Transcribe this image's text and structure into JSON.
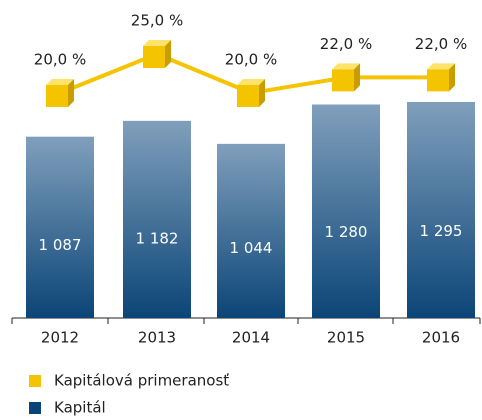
{
  "chart_data": {
    "type": "bar+line",
    "categories": [
      "2012",
      "2013",
      "2014",
      "2015",
      "2016"
    ],
    "series": [
      {
        "name": "Kapitálová primeranosť",
        "type": "line",
        "color": "#f5c400",
        "values": [
          20,
          25,
          20,
          22,
          22
        ],
        "value_labels": [
          "20,0 %",
          "25,0 %",
          "20,0 %",
          "22,0 %",
          "22,0 %"
        ]
      },
      {
        "name": "Kapitál",
        "type": "bar",
        "color": "#0b4577",
        "values": [
          1087,
          1182,
          1044,
          1280,
          1295
        ],
        "value_labels": [
          "1 087",
          "1 182",
          "1 044",
          "1 280",
          "1 295"
        ]
      }
    ]
  }
}
